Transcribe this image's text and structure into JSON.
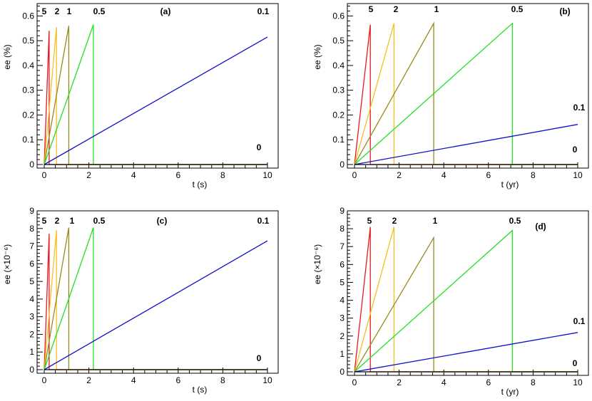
{
  "chart_data": [
    {
      "type": "line",
      "panel_label": "(a)",
      "xlabel": "t (s)",
      "ylabel": "ee (%)",
      "xlim": [
        0,
        10
      ],
      "ylim": [
        0,
        0.65
      ],
      "xticks": [
        "0",
        "2",
        "4",
        "6",
        "8",
        "10"
      ],
      "yticks": [
        "0",
        "0.1",
        "0.2",
        "0.3",
        "0.4",
        "0.5",
        "0.6"
      ],
      "series": [
        {
          "name": "5",
          "color": "#e41a1c",
          "x": [
            0,
            0.22,
            0.22,
            10
          ],
          "y": [
            0,
            0.54,
            0,
            0
          ]
        },
        {
          "name": "2",
          "color": "#f5c020",
          "x": [
            0,
            0.55,
            0.55,
            10
          ],
          "y": [
            0,
            0.555,
            0,
            0
          ]
        },
        {
          "name": "1",
          "color": "#9a8a1a",
          "x": [
            0,
            1.1,
            1.1,
            10
          ],
          "y": [
            0,
            0.56,
            0,
            0
          ]
        },
        {
          "name": "0.5",
          "color": "#22e022",
          "x": [
            0,
            2.2,
            2.2,
            10
          ],
          "y": [
            0,
            0.565,
            0,
            0
          ]
        },
        {
          "name": "0.1",
          "color": "#1010cc",
          "x": [
            0,
            10
          ],
          "y": [
            0,
            0.515
          ]
        },
        {
          "name": "0",
          "color": "#000000",
          "x": [
            0,
            10
          ],
          "y": [
            0,
            0
          ]
        }
      ]
    },
    {
      "type": "line",
      "panel_label": "(b)",
      "xlabel": "t (yr)",
      "ylabel": "ee (%)",
      "xlim": [
        0,
        10
      ],
      "ylim": [
        0,
        0.65
      ],
      "xticks": [
        "0",
        "2",
        "4",
        "6",
        "8",
        "10"
      ],
      "yticks": [
        "0",
        "0.1",
        "0.2",
        "0.3",
        "0.4",
        "0.5",
        "0.6"
      ],
      "series": [
        {
          "name": "5",
          "color": "#e41a1c",
          "x": [
            0,
            0.71,
            0.71,
            10
          ],
          "y": [
            0,
            0.565,
            0,
            0
          ]
        },
        {
          "name": "2",
          "color": "#f5c020",
          "x": [
            0,
            1.77,
            1.77,
            10
          ],
          "y": [
            0,
            0.57,
            0,
            0
          ]
        },
        {
          "name": "1",
          "color": "#9a8a1a",
          "x": [
            0,
            3.55,
            3.55,
            10
          ],
          "y": [
            0,
            0.57,
            0,
            0
          ]
        },
        {
          "name": "0.5",
          "color": "#22e022",
          "x": [
            0,
            7.07,
            7.07,
            10
          ],
          "y": [
            0,
            0.57,
            0,
            0
          ]
        },
        {
          "name": "0.1",
          "color": "#1010cc",
          "x": [
            0,
            10
          ],
          "y": [
            0,
            0.162
          ]
        },
        {
          "name": "0",
          "color": "#000000",
          "x": [
            0,
            10
          ],
          "y": [
            0,
            0
          ]
        }
      ]
    },
    {
      "type": "line",
      "panel_label": "(c)",
      "xlabel": "t (s)",
      "ylabel": "ee (×10⁻⁶)",
      "xlim": [
        0,
        10
      ],
      "ylim": [
        0,
        9
      ],
      "xticks": [
        "0",
        "2",
        "4",
        "6",
        "8",
        "10"
      ],
      "yticks": [
        "0",
        "1",
        "2",
        "3",
        "4",
        "5",
        "6",
        "7",
        "8",
        "9"
      ],
      "series": [
        {
          "name": "5",
          "color": "#e41a1c",
          "x": [
            0,
            0.22,
            0.22,
            10
          ],
          "y": [
            0,
            7.7,
            0,
            0
          ]
        },
        {
          "name": "2",
          "color": "#f5c020",
          "x": [
            0,
            0.55,
            0.55,
            10
          ],
          "y": [
            0,
            7.9,
            0,
            0
          ]
        },
        {
          "name": "1",
          "color": "#9a8a1a",
          "x": [
            0,
            1.1,
            1.1,
            10
          ],
          "y": [
            0,
            8.05,
            0,
            0
          ]
        },
        {
          "name": "0.5",
          "color": "#22e022",
          "x": [
            0,
            2.2,
            2.2,
            10
          ],
          "y": [
            0,
            8.05,
            0,
            0
          ]
        },
        {
          "name": "0.1",
          "color": "#1010cc",
          "x": [
            0,
            10
          ],
          "y": [
            0,
            7.3
          ]
        },
        {
          "name": "0",
          "color": "#000000",
          "x": [
            0,
            10
          ],
          "y": [
            0,
            0
          ]
        }
      ]
    },
    {
      "type": "line",
      "panel_label": "(d)",
      "xlabel": "t (yr)",
      "ylabel": "ee (×10⁻⁶)",
      "xlim": [
        0,
        10
      ],
      "ylim": [
        0,
        9
      ],
      "xticks": [
        "0",
        "2",
        "4",
        "6",
        "8",
        "10"
      ],
      "yticks": [
        "0",
        "1",
        "2",
        "3",
        "4",
        "5",
        "6",
        "7",
        "8",
        "9"
      ],
      "series": [
        {
          "name": "5",
          "color": "#e41a1c",
          "x": [
            0,
            0.71,
            0.71,
            10
          ],
          "y": [
            0,
            8.1,
            0,
            0
          ]
        },
        {
          "name": "2",
          "color": "#f5c020",
          "x": [
            0,
            1.77,
            1.77,
            10
          ],
          "y": [
            0,
            8.1,
            0,
            0
          ]
        },
        {
          "name": "1",
          "color": "#9a8a1a",
          "x": [
            0,
            3.55,
            3.55,
            10
          ],
          "y": [
            0,
            7.5,
            0,
            0
          ]
        },
        {
          "name": "0.5",
          "color": "#22e022",
          "x": [
            0,
            7.07,
            7.07,
            10
          ],
          "y": [
            0,
            7.9,
            0,
            0
          ]
        },
        {
          "name": "0.1",
          "color": "#1010cc",
          "x": [
            0,
            10
          ],
          "y": [
            0,
            2.2
          ]
        },
        {
          "name": "0",
          "color": "#000000",
          "x": [
            0,
            10
          ],
          "y": [
            0,
            0
          ]
        }
      ]
    }
  ]
}
